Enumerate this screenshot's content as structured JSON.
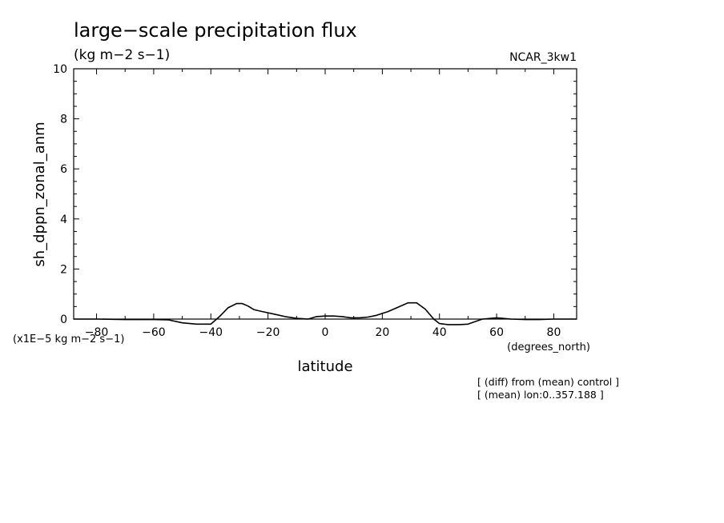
{
  "chart_data": {
    "type": "line",
    "title": "large−scale precipitation flux",
    "subtitle": "(kg m−2 s−1)",
    "model_label": "NCAR_3kw1",
    "xlabel": "latitude",
    "x_unit_label": "(degrees_north)",
    "ylabel": "sh_dppn_zonal_anm",
    "y_unit_label": "(x1E−5 kg m−2 s−1)",
    "notes": [
      "[ (diff) from (mean) control ]",
      "[ (mean) lon:0..357.188 ]"
    ],
    "xlim": [
      -88,
      88
    ],
    "ylim": [
      0,
      10
    ],
    "x_ticks": [
      -80,
      -60,
      -40,
      -20,
      0,
      20,
      40,
      60,
      80
    ],
    "x_tick_labels": [
      "−80",
      "−60",
      "−40",
      "−20",
      "0",
      "20",
      "40",
      "60",
      "80"
    ],
    "y_ticks": [
      0,
      2,
      4,
      6,
      8,
      10
    ],
    "y_tick_labels": [
      "0",
      "2",
      "4",
      "6",
      "8",
      "10"
    ],
    "grid": false,
    "series": [
      {
        "x": [
          -88,
          -80,
          -70,
          -60,
          -55,
          -50,
          -45,
          -40,
          -37,
          -34,
          -31,
          -29,
          -27,
          -25,
          -22,
          -18,
          -14,
          -10,
          -6,
          -3,
          0,
          3,
          6,
          9,
          12,
          15,
          18,
          22,
          26,
          29,
          32,
          35,
          38,
          40,
          43,
          47,
          50,
          55,
          60,
          65,
          70,
          75,
          80,
          88
        ],
        "y": [
          0.0,
          0.0,
          -0.02,
          -0.02,
          -0.03,
          -0.15,
          -0.2,
          -0.2,
          0.1,
          0.45,
          0.62,
          0.62,
          0.52,
          0.38,
          0.3,
          0.2,
          0.1,
          0.03,
          0.0,
          0.1,
          0.12,
          0.12,
          0.1,
          0.05,
          0.05,
          0.08,
          0.15,
          0.3,
          0.5,
          0.65,
          0.65,
          0.4,
          0.0,
          -0.18,
          -0.22,
          -0.22,
          -0.2,
          0.0,
          0.05,
          0.0,
          -0.02,
          -0.02,
          0.0,
          0.0
        ]
      }
    ]
  }
}
